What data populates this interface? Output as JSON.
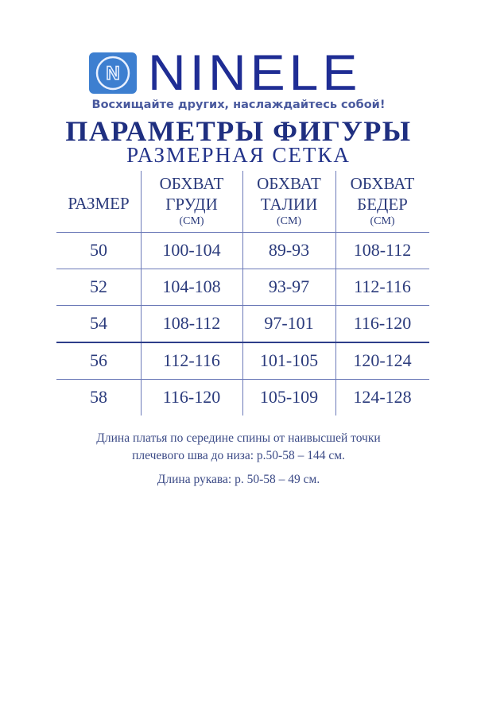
{
  "brand": {
    "name": "NINELE",
    "logo_letter": "N",
    "tagline": "Восхищайте других, наслаждайтесь собой!"
  },
  "title": "ПАРАМЕТРЫ ФИГУРЫ",
  "subtitle": "РАЗМЕРНАЯ СЕТКА",
  "table": {
    "headers": [
      {
        "line1": "РАЗМЕР"
      },
      {
        "line1": "ОБХВАТ",
        "line2": "ГРУДИ",
        "unit": "(СМ)"
      },
      {
        "line1": "ОБХВАТ",
        "line2": "ТАЛИИ",
        "unit": "(СМ)"
      },
      {
        "line1": "ОБХВАТ",
        "line2": "БЕДЕР",
        "unit": "(СМ)"
      }
    ],
    "rows": [
      [
        "50",
        "100-104",
        "89-93",
        "108-112"
      ],
      [
        "52",
        "104-108",
        "93-97",
        "112-116"
      ],
      [
        "54",
        "108-112",
        "97-101",
        "116-120"
      ],
      [
        "56",
        "112-116",
        "101-105",
        "120-124"
      ],
      [
        "58",
        "116-120",
        "105-109",
        "124-128"
      ]
    ]
  },
  "notes": {
    "dress_length_line1": "Длина платья по середине спины от наивысшей точки",
    "dress_length_line2": "плечевого шва до низа: р.50-58 – 144 см.",
    "sleeve_length": "Длина рукава: р. 50-58 – 49 см."
  },
  "colors": {
    "brand": "#1f2d94",
    "logo_bg": "#3d7fd0",
    "title": "#1f2f80"
  }
}
